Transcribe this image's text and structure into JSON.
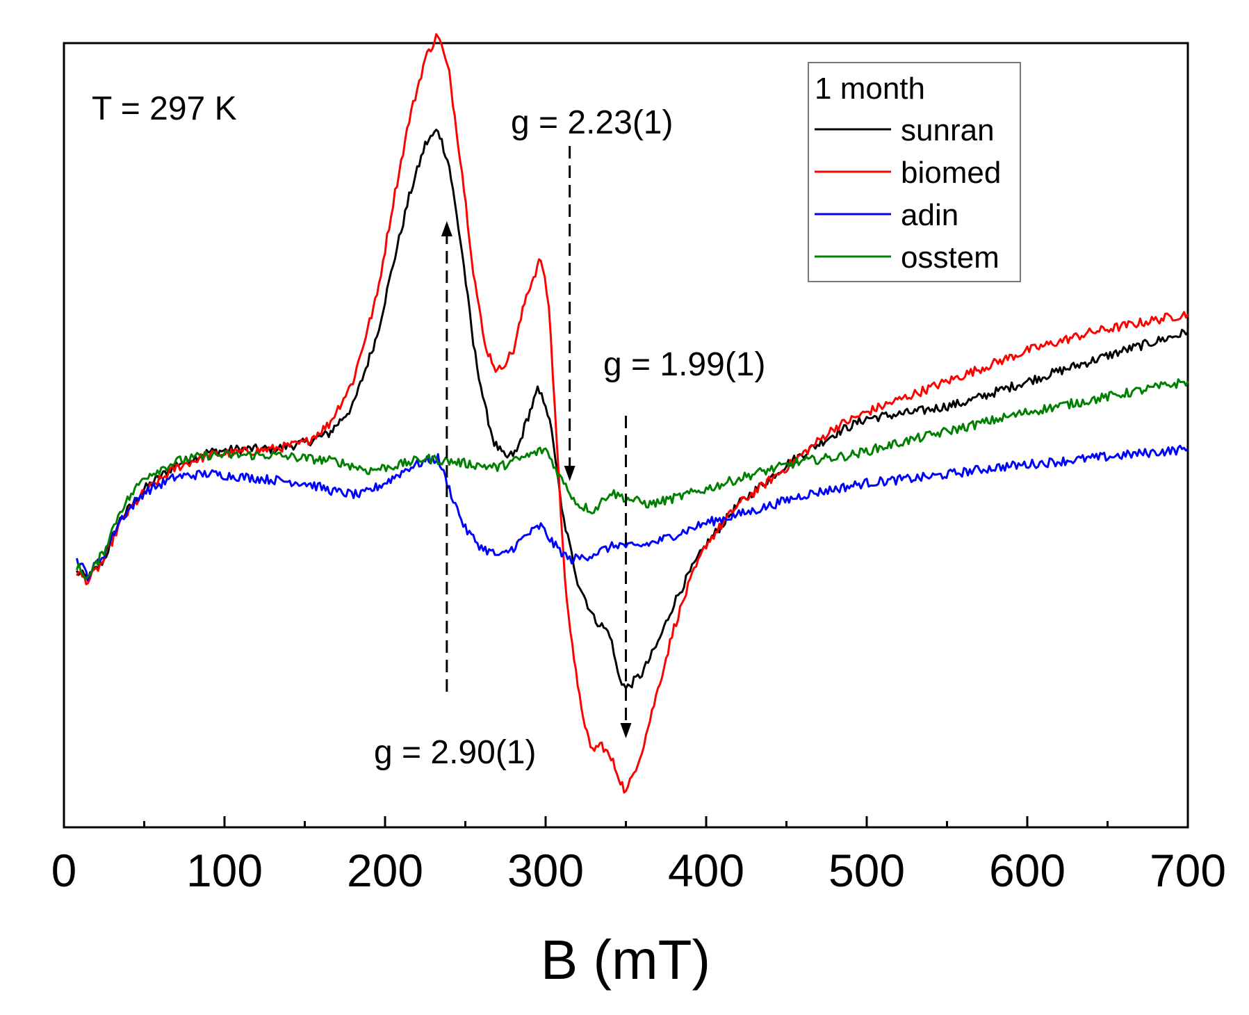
{
  "chart_data": {
    "type": "line",
    "title": "",
    "xlabel": "B (mT)",
    "ylabel": "",
    "xlim": [
      0,
      700
    ],
    "ylim": [
      -1.25,
      1.3
    ],
    "xticks": [
      0,
      100,
      200,
      300,
      400,
      500,
      600,
      700
    ],
    "grid": false,
    "legend": {
      "title": "1 month",
      "placement": "top-right"
    },
    "annotations": [
      {
        "text": "T = 297 K"
      },
      {
        "text": "g = 2.23(1)",
        "x": 315
      },
      {
        "text": "g = 1.99(1)",
        "x": 350
      },
      {
        "text": "g = 2.90(1)",
        "x": 235
      }
    ],
    "series": [
      {
        "name": "sunran",
        "color": "#000000",
        "points": [
          [
            8,
            -0.42
          ],
          [
            15,
            -0.44
          ],
          [
            25,
            -0.38
          ],
          [
            35,
            -0.25
          ],
          [
            50,
            -0.15
          ],
          [
            70,
            -0.07
          ],
          [
            90,
            -0.03
          ],
          [
            110,
            -0.02
          ],
          [
            130,
            -0.02
          ],
          [
            150,
            0.0
          ],
          [
            165,
            0.03
          ],
          [
            180,
            0.12
          ],
          [
            195,
            0.35
          ],
          [
            205,
            0.58
          ],
          [
            215,
            0.8
          ],
          [
            225,
            0.97
          ],
          [
            233,
            1.02
          ],
          [
            240,
            0.9
          ],
          [
            248,
            0.62
          ],
          [
            255,
            0.32
          ],
          [
            262,
            0.12
          ],
          [
            268,
            0.0
          ],
          [
            275,
            -0.05
          ],
          [
            282,
            -0.03
          ],
          [
            288,
            0.07
          ],
          [
            295,
            0.17
          ],
          [
            300,
            0.13
          ],
          [
            305,
            0.0
          ],
          [
            310,
            -0.22
          ],
          [
            320,
            -0.45
          ],
          [
            330,
            -0.57
          ],
          [
            340,
            -0.62
          ],
          [
            345,
            -0.75
          ],
          [
            350,
            -0.8
          ],
          [
            360,
            -0.75
          ],
          [
            370,
            -0.65
          ],
          [
            380,
            -0.52
          ],
          [
            390,
            -0.42
          ],
          [
            400,
            -0.33
          ],
          [
            420,
            -0.2
          ],
          [
            450,
            -0.07
          ],
          [
            480,
            0.03
          ],
          [
            500,
            0.08
          ],
          [
            530,
            0.1
          ],
          [
            560,
            0.13
          ],
          [
            600,
            0.2
          ],
          [
            630,
            0.25
          ],
          [
            660,
            0.3
          ],
          [
            700,
            0.36
          ]
        ]
      },
      {
        "name": "biomed",
        "color": "#ff0000",
        "points": [
          [
            8,
            -0.42
          ],
          [
            15,
            -0.45
          ],
          [
            25,
            -0.38
          ],
          [
            35,
            -0.26
          ],
          [
            50,
            -0.16
          ],
          [
            70,
            -0.08
          ],
          [
            90,
            -0.04
          ],
          [
            110,
            -0.03
          ],
          [
            130,
            -0.02
          ],
          [
            150,
            0.0
          ],
          [
            165,
            0.06
          ],
          [
            180,
            0.2
          ],
          [
            195,
            0.48
          ],
          [
            205,
            0.78
          ],
          [
            215,
            1.05
          ],
          [
            225,
            1.25
          ],
          [
            233,
            1.33
          ],
          [
            240,
            1.2
          ],
          [
            248,
            0.88
          ],
          [
            255,
            0.56
          ],
          [
            262,
            0.32
          ],
          [
            270,
            0.23
          ],
          [
            280,
            0.3
          ],
          [
            288,
            0.48
          ],
          [
            297,
            0.6
          ],
          [
            302,
            0.45
          ],
          [
            307,
            0.0
          ],
          [
            312,
            -0.45
          ],
          [
            320,
            -0.8
          ],
          [
            328,
            -1.0
          ],
          [
            335,
            -0.98
          ],
          [
            342,
            -1.04
          ],
          [
            350,
            -1.14
          ],
          [
            360,
            -1.0
          ],
          [
            370,
            -0.8
          ],
          [
            380,
            -0.6
          ],
          [
            390,
            -0.45
          ],
          [
            400,
            -0.33
          ],
          [
            420,
            -0.2
          ],
          [
            450,
            -0.08
          ],
          [
            480,
            0.05
          ],
          [
            500,
            0.1
          ],
          [
            530,
            0.16
          ],
          [
            560,
            0.22
          ],
          [
            600,
            0.3
          ],
          [
            640,
            0.36
          ],
          [
            680,
            0.4
          ],
          [
            700,
            0.42
          ]
        ]
      },
      {
        "name": "adin",
        "color": "#0000ff",
        "points": [
          [
            8,
            -0.38
          ],
          [
            15,
            -0.43
          ],
          [
            25,
            -0.36
          ],
          [
            35,
            -0.25
          ],
          [
            50,
            -0.16
          ],
          [
            70,
            -0.11
          ],
          [
            90,
            -0.1
          ],
          [
            110,
            -0.11
          ],
          [
            130,
            -0.12
          ],
          [
            150,
            -0.13
          ],
          [
            170,
            -0.16
          ],
          [
            185,
            -0.17
          ],
          [
            200,
            -0.13
          ],
          [
            215,
            -0.08
          ],
          [
            225,
            -0.06
          ],
          [
            233,
            -0.05
          ],
          [
            240,
            -0.15
          ],
          [
            250,
            -0.28
          ],
          [
            260,
            -0.34
          ],
          [
            272,
            -0.37
          ],
          [
            280,
            -0.34
          ],
          [
            288,
            -0.3
          ],
          [
            297,
            -0.27
          ],
          [
            305,
            -0.33
          ],
          [
            315,
            -0.38
          ],
          [
            325,
            -0.37
          ],
          [
            335,
            -0.35
          ],
          [
            345,
            -0.33
          ],
          [
            355,
            -0.34
          ],
          [
            370,
            -0.32
          ],
          [
            400,
            -0.26
          ],
          [
            430,
            -0.22
          ],
          [
            460,
            -0.17
          ],
          [
            500,
            -0.13
          ],
          [
            540,
            -0.11
          ],
          [
            580,
            -0.08
          ],
          [
            620,
            -0.06
          ],
          [
            660,
            -0.04
          ],
          [
            700,
            -0.02
          ]
        ]
      },
      {
        "name": "osstem",
        "color": "#008000",
        "points": [
          [
            8,
            -0.4
          ],
          [
            15,
            -0.44
          ],
          [
            25,
            -0.35
          ],
          [
            35,
            -0.22
          ],
          [
            50,
            -0.11
          ],
          [
            70,
            -0.06
          ],
          [
            90,
            -0.04
          ],
          [
            110,
            -0.04
          ],
          [
            130,
            -0.04
          ],
          [
            150,
            -0.05
          ],
          [
            170,
            -0.06
          ],
          [
            190,
            -0.09
          ],
          [
            210,
            -0.07
          ],
          [
            225,
            -0.05
          ],
          [
            240,
            -0.06
          ],
          [
            255,
            -0.07
          ],
          [
            270,
            -0.08
          ],
          [
            285,
            -0.05
          ],
          [
            300,
            -0.02
          ],
          [
            310,
            -0.12
          ],
          [
            320,
            -0.2
          ],
          [
            330,
            -0.22
          ],
          [
            340,
            -0.16
          ],
          [
            350,
            -0.18
          ],
          [
            365,
            -0.2
          ],
          [
            380,
            -0.18
          ],
          [
            400,
            -0.15
          ],
          [
            430,
            -0.1
          ],
          [
            460,
            -0.06
          ],
          [
            490,
            -0.04
          ],
          [
            520,
            0.0
          ],
          [
            560,
            0.05
          ],
          [
            600,
            0.1
          ],
          [
            650,
            0.15
          ],
          [
            700,
            0.2
          ]
        ]
      }
    ]
  }
}
